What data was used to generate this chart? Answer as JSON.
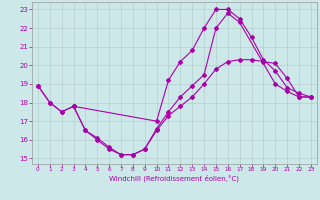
{
  "xlabel": "Windchill (Refroidissement éolien,°C)",
  "bg_color": "#cce8e8",
  "line_color": "#aa00aa",
  "xlim": [
    -0.5,
    23.5
  ],
  "ylim": [
    14.7,
    23.4
  ],
  "yticks": [
    15,
    16,
    17,
    18,
    19,
    20,
    21,
    22,
    23
  ],
  "xticks": [
    0,
    1,
    2,
    3,
    4,
    5,
    6,
    7,
    8,
    9,
    10,
    11,
    12,
    13,
    14,
    15,
    16,
    17,
    18,
    19,
    20,
    21,
    22,
    23
  ],
  "line1_x": [
    0,
    1,
    2,
    3,
    4,
    5,
    6,
    7,
    8,
    9,
    10,
    11,
    12,
    13,
    14,
    15,
    16,
    17,
    18,
    19,
    20,
    21,
    22,
    23
  ],
  "line1_y": [
    18.9,
    18.0,
    17.5,
    17.8,
    16.5,
    16.0,
    15.5,
    15.2,
    15.2,
    15.5,
    16.5,
    17.3,
    17.8,
    18.3,
    19.0,
    19.8,
    20.2,
    20.3,
    20.3,
    20.2,
    20.1,
    19.3,
    18.3,
    18.3
  ],
  "line2_x": [
    0,
    1,
    2,
    3,
    10,
    11,
    12,
    13,
    14,
    15,
    16,
    17,
    18,
    19,
    20,
    21,
    22,
    23
  ],
  "line2_y": [
    18.9,
    18.0,
    17.5,
    17.8,
    17.0,
    19.2,
    20.2,
    20.8,
    22.0,
    23.0,
    23.0,
    22.5,
    21.5,
    20.3,
    19.7,
    18.8,
    18.5,
    18.3
  ],
  "line3_x": [
    3,
    4,
    5,
    6,
    7,
    8,
    9,
    10,
    11,
    12,
    13,
    14,
    15,
    16,
    17,
    20,
    21,
    22,
    23
  ],
  "line3_y": [
    17.8,
    16.5,
    16.1,
    15.6,
    15.2,
    15.2,
    15.5,
    16.6,
    17.5,
    18.3,
    18.9,
    19.5,
    22.0,
    22.8,
    22.3,
    19.0,
    18.6,
    18.3,
    18.3
  ]
}
